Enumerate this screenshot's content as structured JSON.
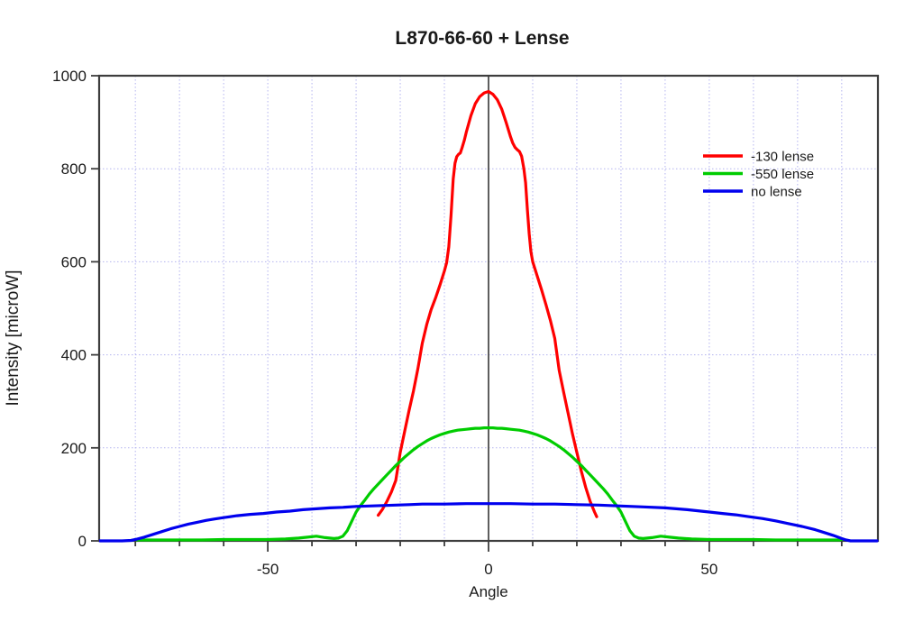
{
  "page": {
    "background": "#ffffff"
  },
  "chart_data": {
    "type": "line",
    "title": "L870-66-60 + Lense",
    "xlabel": "Angle",
    "ylabel": "Intensity [microW]",
    "xlim": [
      -88.2,
      88.2
    ],
    "ylim": [
      0,
      1000
    ],
    "x_major_tick_values": [
      -50,
      0,
      50
    ],
    "x_minor_tick_step": 10,
    "y_tick_values": [
      0,
      200,
      400,
      600,
      800,
      1000
    ],
    "grid": {
      "vertical_step": 10,
      "horizontal_step": 200,
      "style": "dotted",
      "color": "#b3b3ef",
      "visible": true
    },
    "axis_color": "#3d3d3d",
    "zero_line_at_x": 0,
    "legend": {
      "position": "upper-right",
      "entries": [
        {
          "label": "-130 lense",
          "color": "#ff0000"
        },
        {
          "label": "-550 lense",
          "color": "#00cc00"
        },
        {
          "label": "no lense",
          "color": "#0000ee"
        }
      ]
    },
    "series": [
      {
        "name": "-130 lense",
        "color": "#ff0000",
        "points": [
          [
            -25,
            55
          ],
          [
            -24,
            68
          ],
          [
            -23,
            85
          ],
          [
            -22,
            105
          ],
          [
            -21,
            130
          ],
          [
            -20,
            190
          ],
          [
            -19,
            235
          ],
          [
            -18,
            280
          ],
          [
            -17,
            322
          ],
          [
            -16,
            370
          ],
          [
            -15,
            425
          ],
          [
            -14,
            465
          ],
          [
            -13,
            497
          ],
          [
            -12,
            522
          ],
          [
            -11,
            550
          ],
          [
            -10,
            580
          ],
          [
            -9.5,
            598
          ],
          [
            -9,
            632
          ],
          [
            -8.5,
            700
          ],
          [
            -8,
            778
          ],
          [
            -7.6,
            812
          ],
          [
            -7.2,
            826
          ],
          [
            -6.8,
            831
          ],
          [
            -6.4,
            834
          ],
          [
            -6,
            845
          ],
          [
            -5.5,
            861
          ],
          [
            -5,
            880
          ],
          [
            -4,
            914
          ],
          [
            -3,
            940
          ],
          [
            -2,
            955
          ],
          [
            -1,
            963
          ],
          [
            0,
            966
          ],
          [
            1,
            960
          ],
          [
            2,
            948
          ],
          [
            3,
            928
          ],
          [
            4,
            899
          ],
          [
            5,
            868
          ],
          [
            5.5,
            855
          ],
          [
            6,
            846
          ],
          [
            6.5,
            841
          ],
          [
            7,
            837
          ],
          [
            7.5,
            827
          ],
          [
            8,
            800
          ],
          [
            8.4,
            770
          ],
          [
            8.8,
            712
          ],
          [
            9.2,
            660
          ],
          [
            9.6,
            622
          ],
          [
            10,
            600
          ],
          [
            11,
            570
          ],
          [
            12,
            540
          ],
          [
            13,
            508
          ],
          [
            14,
            474
          ],
          [
            15,
            435
          ],
          [
            16,
            366
          ],
          [
            17,
            320
          ],
          [
            18,
            275
          ],
          [
            19,
            230
          ],
          [
            20,
            190
          ],
          [
            21,
            150
          ],
          [
            22,
            115
          ],
          [
            23,
            85
          ],
          [
            24,
            62
          ],
          [
            24.5,
            52
          ]
        ]
      },
      {
        "name": "-550 lense",
        "color": "#00cc00",
        "points": [
          [
            -80,
            2
          ],
          [
            -75,
            2
          ],
          [
            -70,
            2
          ],
          [
            -65,
            2
          ],
          [
            -60,
            3
          ],
          [
            -55,
            3
          ],
          [
            -50,
            3
          ],
          [
            -46,
            4
          ],
          [
            -43,
            6
          ],
          [
            -41,
            8
          ],
          [
            -39,
            10
          ],
          [
            -37,
            7
          ],
          [
            -35,
            5
          ],
          [
            -34,
            6
          ],
          [
            -33,
            10
          ],
          [
            -32,
            22
          ],
          [
            -31,
            42
          ],
          [
            -30,
            62
          ],
          [
            -29,
            76
          ],
          [
            -28,
            88
          ],
          [
            -27,
            101
          ],
          [
            -26,
            112
          ],
          [
            -25,
            122
          ],
          [
            -24,
            132
          ],
          [
            -23,
            142
          ],
          [
            -22,
            152
          ],
          [
            -21,
            162
          ],
          [
            -20,
            171
          ],
          [
            -19,
            180
          ],
          [
            -18,
            188
          ],
          [
            -17,
            196
          ],
          [
            -16,
            203
          ],
          [
            -15,
            209
          ],
          [
            -14,
            215
          ],
          [
            -13,
            220
          ],
          [
            -12,
            224
          ],
          [
            -11,
            228
          ],
          [
            -10,
            231
          ],
          [
            -9,
            234
          ],
          [
            -8,
            236
          ],
          [
            -7,
            238
          ],
          [
            -6,
            239
          ],
          [
            -5,
            240
          ],
          [
            -4,
            241
          ],
          [
            -3,
            242
          ],
          [
            -2,
            242
          ],
          [
            -1,
            243
          ],
          [
            0,
            243
          ],
          [
            1,
            243
          ],
          [
            2,
            242
          ],
          [
            3,
            242
          ],
          [
            4,
            241
          ],
          [
            5,
            240
          ],
          [
            6,
            239
          ],
          [
            7,
            238
          ],
          [
            8,
            236
          ],
          [
            9,
            234
          ],
          [
            10,
            231
          ],
          [
            11,
            228
          ],
          [
            12,
            224
          ],
          [
            13,
            220
          ],
          [
            14,
            215
          ],
          [
            15,
            209
          ],
          [
            16,
            203
          ],
          [
            17,
            196
          ],
          [
            18,
            188
          ],
          [
            19,
            180
          ],
          [
            20,
            171
          ],
          [
            21,
            162
          ],
          [
            22,
            152
          ],
          [
            23,
            142
          ],
          [
            24,
            132
          ],
          [
            25,
            122
          ],
          [
            26,
            112
          ],
          [
            27,
            101
          ],
          [
            28,
            88
          ],
          [
            29,
            76
          ],
          [
            30,
            62
          ],
          [
            31,
            42
          ],
          [
            32,
            22
          ],
          [
            33,
            10
          ],
          [
            34,
            6
          ],
          [
            35,
            5
          ],
          [
            37,
            7
          ],
          [
            39,
            10
          ],
          [
            41,
            8
          ],
          [
            43,
            6
          ],
          [
            46,
            4
          ],
          [
            50,
            3
          ],
          [
            55,
            3
          ],
          [
            60,
            3
          ],
          [
            65,
            2
          ],
          [
            70,
            2
          ],
          [
            75,
            2
          ],
          [
            80,
            2
          ]
        ]
      },
      {
        "name": "no lense",
        "color": "#0000ee",
        "points": [
          [
            -88,
            0
          ],
          [
            -85,
            0
          ],
          [
            -83,
            0
          ],
          [
            -81,
            1
          ],
          [
            -80,
            3
          ],
          [
            -78,
            8
          ],
          [
            -76,
            14
          ],
          [
            -74,
            20
          ],
          [
            -72,
            26
          ],
          [
            -70,
            31
          ],
          [
            -68,
            36
          ],
          [
            -66,
            40
          ],
          [
            -64,
            44
          ],
          [
            -62,
            47
          ],
          [
            -60,
            50
          ],
          [
            -57,
            54
          ],
          [
            -54,
            57
          ],
          [
            -51,
            59
          ],
          [
            -48,
            62
          ],
          [
            -45,
            64
          ],
          [
            -42,
            67
          ],
          [
            -39,
            69
          ],
          [
            -36,
            71
          ],
          [
            -33,
            72
          ],
          [
            -30,
            74
          ],
          [
            -27,
            75
          ],
          [
            -24,
            76
          ],
          [
            -21,
            77
          ],
          [
            -18,
            78
          ],
          [
            -15,
            79
          ],
          [
            -10,
            79
          ],
          [
            -5,
            80
          ],
          [
            0,
            80
          ],
          [
            5,
            80
          ],
          [
            10,
            79
          ],
          [
            15,
            79
          ],
          [
            20,
            78
          ],
          [
            25,
            77
          ],
          [
            30,
            75
          ],
          [
            35,
            73
          ],
          [
            40,
            71
          ],
          [
            45,
            67
          ],
          [
            50,
            62
          ],
          [
            53,
            59
          ],
          [
            56,
            56
          ],
          [
            59,
            52
          ],
          [
            62,
            48
          ],
          [
            65,
            43
          ],
          [
            68,
            37
          ],
          [
            71,
            31
          ],
          [
            74,
            24
          ],
          [
            76,
            18
          ],
          [
            78,
            12
          ],
          [
            80,
            5
          ],
          [
            81,
            2
          ],
          [
            82,
            0
          ],
          [
            84,
            0
          ],
          [
            86,
            0
          ],
          [
            88,
            0
          ]
        ]
      }
    ]
  }
}
